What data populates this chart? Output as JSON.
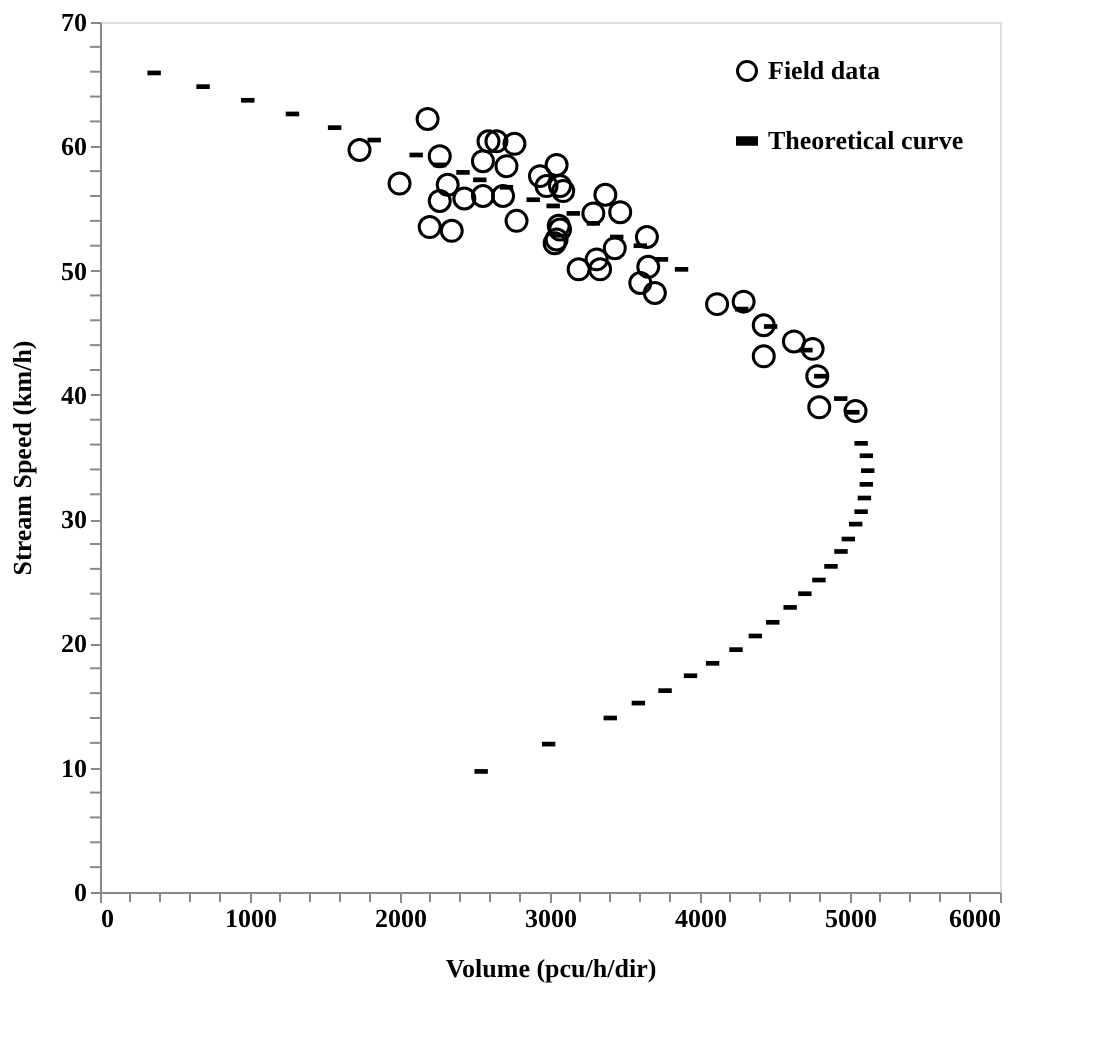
{
  "chart_data": {
    "type": "scatter",
    "xlabel": "Volume (pcu/h/dir)",
    "ylabel": "Stream Speed (km/h)",
    "xlim": [
      0,
      6000
    ],
    "ylim": [
      0,
      70
    ],
    "xticks": [
      0,
      {
        "value": 200,
        "label": null
      },
      {
        "value": 400,
        "label": null
      },
      {
        "value": 600,
        "label": null
      },
      {
        "value": 800,
        "label": null
      },
      1000,
      {
        "value": 1200,
        "label": null
      },
      {
        "value": 1400,
        "label": null
      },
      {
        "value": 1600,
        "label": null
      },
      {
        "value": 1800,
        "label": null
      },
      2000,
      {
        "value": 2200,
        "label": null
      },
      {
        "value": 2400,
        "label": null
      },
      {
        "value": 2600,
        "label": null
      },
      {
        "value": 2800,
        "label": null
      },
      3000,
      {
        "value": 3200,
        "label": null
      },
      {
        "value": 3400,
        "label": null
      },
      {
        "value": 3600,
        "label": null
      },
      {
        "value": 3800,
        "label": null
      },
      4000,
      {
        "value": 4200,
        "label": null
      },
      {
        "value": 4400,
        "label": null
      },
      {
        "value": 4600,
        "label": null
      },
      {
        "value": 4800,
        "label": null
      },
      5000,
      {
        "value": 5200,
        "label": null
      },
      {
        "value": 5400,
        "label": null
      },
      {
        "value": 5600,
        "label": null
      },
      {
        "value": 5800,
        "label": null
      },
      6000
    ],
    "yticks": [
      0,
      {
        "value": 2,
        "label": null
      },
      {
        "value": 4,
        "label": null
      },
      {
        "value": 6,
        "label": null
      },
      {
        "value": 8,
        "label": null
      },
      10,
      {
        "value": 12,
        "label": null
      },
      {
        "value": 14,
        "label": null
      },
      {
        "value": 16,
        "label": null
      },
      {
        "value": 18,
        "label": null
      },
      20,
      {
        "value": 22,
        "label": null
      },
      {
        "value": 24,
        "label": null
      },
      {
        "value": 26,
        "label": null
      },
      {
        "value": 28,
        "label": null
      },
      30,
      {
        "value": 32,
        "label": null
      },
      {
        "value": 34,
        "label": null
      },
      {
        "value": 36,
        "label": null
      },
      {
        "value": 38,
        "label": null
      },
      40,
      {
        "value": 42,
        "label": null
      },
      {
        "value": 44,
        "label": null
      },
      {
        "value": 46,
        "label": null
      },
      {
        "value": 48,
        "label": null
      },
      50,
      {
        "value": 52,
        "label": null
      },
      {
        "value": 54,
        "label": null
      },
      {
        "value": 56,
        "label": null
      },
      {
        "value": 58,
        "label": null
      },
      60,
      {
        "value": 62,
        "label": null
      },
      {
        "value": 64,
        "label": null
      },
      {
        "value": 66,
        "label": null
      },
      {
        "value": 68,
        "label": null
      },
      70
    ],
    "grid": false,
    "legend": "top right",
    "series": [
      {
        "name": "Field data",
        "color": "#000000",
        "marker": "circle",
        "x": [
          2184,
          1730,
          1997,
          2265,
          2198,
          2345,
          2265,
          2318,
          2429,
          2553,
          2590,
          2643,
          2763,
          2710,
          2553,
          2687,
          2777,
          2933,
          3044,
          2977,
          3067,
          3058,
          3044,
          3088,
          3067,
          3031,
          3191,
          3334,
          3311,
          3289,
          3369,
          3468,
          3432,
          3646,
          3655,
          3602,
          3699,
          4114,
          4291,
          4425,
          4425,
          4626,
          4751,
          4782,
          4795,
          5037
        ],
        "values": [
          62.2,
          59.7,
          57.0,
          59.2,
          53.5,
          53.2,
          55.6,
          56.9,
          55.8,
          58.8,
          60.4,
          60.4,
          60.2,
          58.4,
          56.0,
          56.0,
          54.0,
          57.6,
          58.5,
          56.8,
          56.8,
          53.6,
          52.5,
          56.4,
          53.3,
          52.2,
          50.1,
          50.1,
          50.9,
          54.6,
          56.1,
          54.7,
          51.8,
          52.7,
          50.3,
          49.0,
          48.2,
          47.3,
          47.5,
          45.6,
          43.1,
          44.3,
          43.7,
          41.5,
          39.0,
          38.7
        ]
      },
      {
        "name": "Theoretical curve",
        "color": "#000000",
        "marker": "square",
        "x": [
          361,
          687,
          985,
          1283,
          1564,
          1828,
          2108,
          2265,
          2420,
          2532,
          2710,
          2888,
          3021,
          3155,
          3289,
          3445,
          3602,
          3743,
          3877,
          4278,
          4471,
          4706,
          4805,
          4938,
          5019,
          5074,
          5109,
          5118,
          5109,
          5096,
          5074,
          5038,
          4989,
          4940,
          4873,
          4793,
          4699,
          4601,
          4485,
          4369,
          4240,
          4084,
          3937,
          3767,
          3589,
          3402,
          2991,
          2541
        ],
        "values": [
          65.9,
          64.8,
          63.7,
          62.6,
          61.5,
          60.5,
          59.3,
          58.5,
          57.9,
          57.3,
          56.7,
          55.7,
          55.2,
          54.6,
          53.8,
          52.7,
          52.0,
          50.9,
          50.1,
          46.9,
          45.5,
          43.6,
          41.5,
          39.7,
          38.6,
          36.1,
          35.1,
          33.9,
          32.8,
          31.7,
          30.6,
          29.6,
          28.4,
          27.4,
          26.2,
          25.1,
          24.0,
          22.9,
          21.7,
          20.6,
          19.5,
          18.4,
          17.4,
          16.2,
          15.2,
          14.0,
          11.9,
          9.7
        ]
      }
    ]
  }
}
